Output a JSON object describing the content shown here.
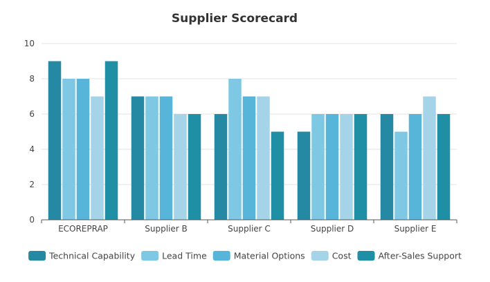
{
  "chart_data": {
    "type": "bar",
    "title": "Supplier Scorecard",
    "xlabel": "",
    "ylabel": "",
    "ylim": [
      0,
      10
    ],
    "yticks": [
      0,
      2,
      4,
      6,
      8,
      10
    ],
    "grid": true,
    "legend_position": "bottom",
    "categories": [
      "ECOREPRAP",
      "Supplier B",
      "Supplier C",
      "Supplier D",
      "Supplier E"
    ],
    "series": [
      {
        "name": "Technical Capability",
        "color": "#2589a3",
        "values": [
          9,
          7,
          6,
          5,
          6
        ]
      },
      {
        "name": "Lead Time",
        "color": "#7fc8e4",
        "values": [
          8,
          7,
          8,
          6,
          5
        ]
      },
      {
        "name": "Material Options",
        "color": "#56b5d9",
        "values": [
          8,
          7,
          7,
          6,
          6
        ]
      },
      {
        "name": "Cost",
        "color": "#a5d4e9",
        "values": [
          7,
          6,
          7,
          6,
          7
        ]
      },
      {
        "name": "After-Sales Support",
        "color": "#1f8fa6",
        "values": [
          9,
          6,
          5,
          6,
          6
        ]
      }
    ]
  }
}
